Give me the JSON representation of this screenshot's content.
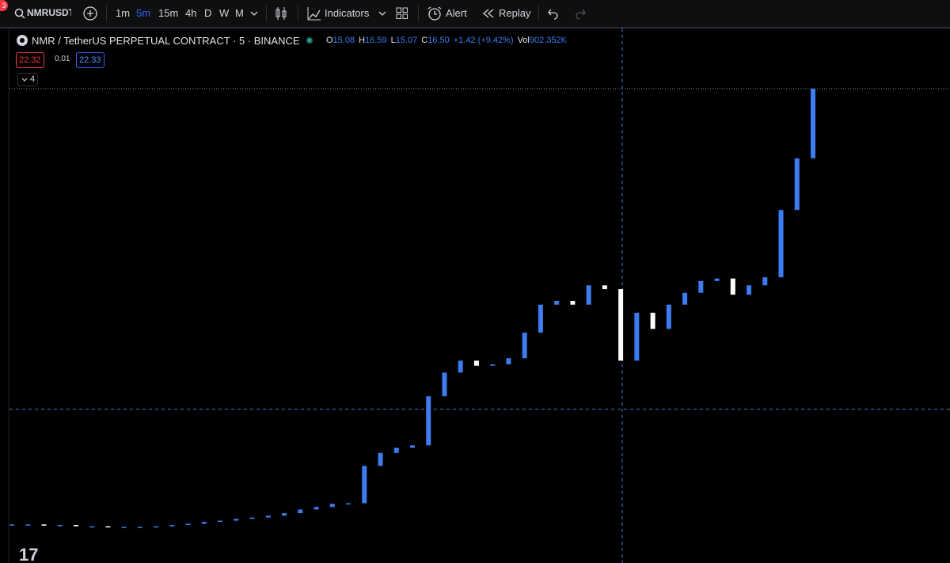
{
  "toolbar": {
    "badge": "3",
    "symbol": "NMRUSDT",
    "intervals": [
      "1m",
      "5m",
      "15m",
      "4h",
      "D",
      "W",
      "M"
    ],
    "indicators": "Indicators",
    "alert": "Alert",
    "replay": "Replay"
  },
  "legend": {
    "title": "NMR / TetherUS PERPETUAL CONTRACT · 5 · BINANCE",
    "ohlc": [
      {
        "label": "O",
        "value": "15.08"
      },
      {
        "label": "H",
        "value": "16.59"
      },
      {
        "label": "L",
        "value": "15.07"
      },
      {
        "label": "C",
        "value": "16.50"
      }
    ],
    "change": "+1.42 (+9.42%)",
    "volume_label": "Vol",
    "volume": "902.352K",
    "bid": "22.32",
    "spread": "0.01",
    "ask": "22.33",
    "collapsed_count": "4"
  },
  "chart": {
    "closes": [
      9.5,
      9.5,
      9.49,
      9.49,
      9.47,
      9.47,
      9.46,
      9.46,
      9.46,
      9.47,
      9.49,
      9.51,
      9.54,
      9.56,
      9.59,
      9.61,
      9.64,
      9.68,
      9.74,
      9.78,
      9.83,
      9.84,
      10.44,
      10.65,
      10.73,
      10.77,
      11.56,
      11.94,
      12.13,
      12.05,
      12.07,
      12.17,
      12.58,
      13.03,
      13.09,
      13.03,
      13.34,
      13.28,
      12.13,
      12.9,
      12.64,
      13.03,
      13.22,
      13.41,
      13.45,
      13.19,
      13.34,
      13.47,
      14.55,
      15.38,
      16.5
    ],
    "ylim": [
      8.88,
      17.44
    ],
    "up_color": "#3d7cf0",
    "down_color": "#ffffff"
  }
}
